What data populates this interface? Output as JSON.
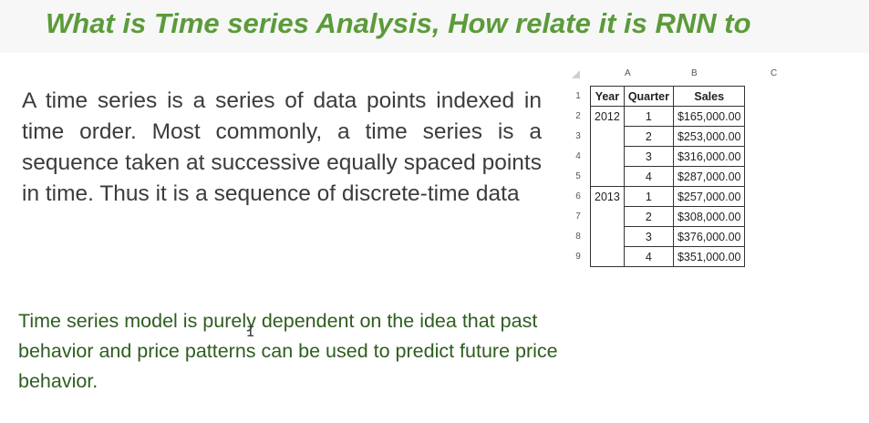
{
  "title": "What is Time series Analysis, How relate it is RNN to",
  "paragraph1": "A time series is a series of data points indexed in time order. Most commonly, a time series is a sequence taken at successive equally spaced points in time. Thus it is a sequence of discrete-time data",
  "paragraph2": "Time series model is purely dependent on the idea that past behavior and price patterns can be used to predict future price behavior.",
  "sheet": {
    "columns": [
      "A",
      "B",
      "C"
    ],
    "row_numbers": [
      "1",
      "2",
      "3",
      "4",
      "5",
      "6",
      "7",
      "8",
      "9"
    ],
    "headers": {
      "year": "Year",
      "quarter": "Quarter",
      "sales": "Sales"
    },
    "rows": [
      {
        "year": "2012",
        "quarter": "1",
        "sales": "$165,000.00"
      },
      {
        "year": "",
        "quarter": "2",
        "sales": "$253,000.00"
      },
      {
        "year": "",
        "quarter": "3",
        "sales": "$316,000.00"
      },
      {
        "year": "",
        "quarter": "4",
        "sales": "$287,000.00"
      },
      {
        "year": "2013",
        "quarter": "1",
        "sales": "$257,000.00"
      },
      {
        "year": "",
        "quarter": "2",
        "sales": "$308,000.00"
      },
      {
        "year": "",
        "quarter": "3",
        "sales": "$376,000.00"
      },
      {
        "year": "",
        "quarter": "4",
        "sales": "$351,000.00"
      }
    ]
  },
  "colors": {
    "title": "#5b9b3a",
    "body_text": "#3c3c3c",
    "green_text": "#2e5d1f"
  }
}
